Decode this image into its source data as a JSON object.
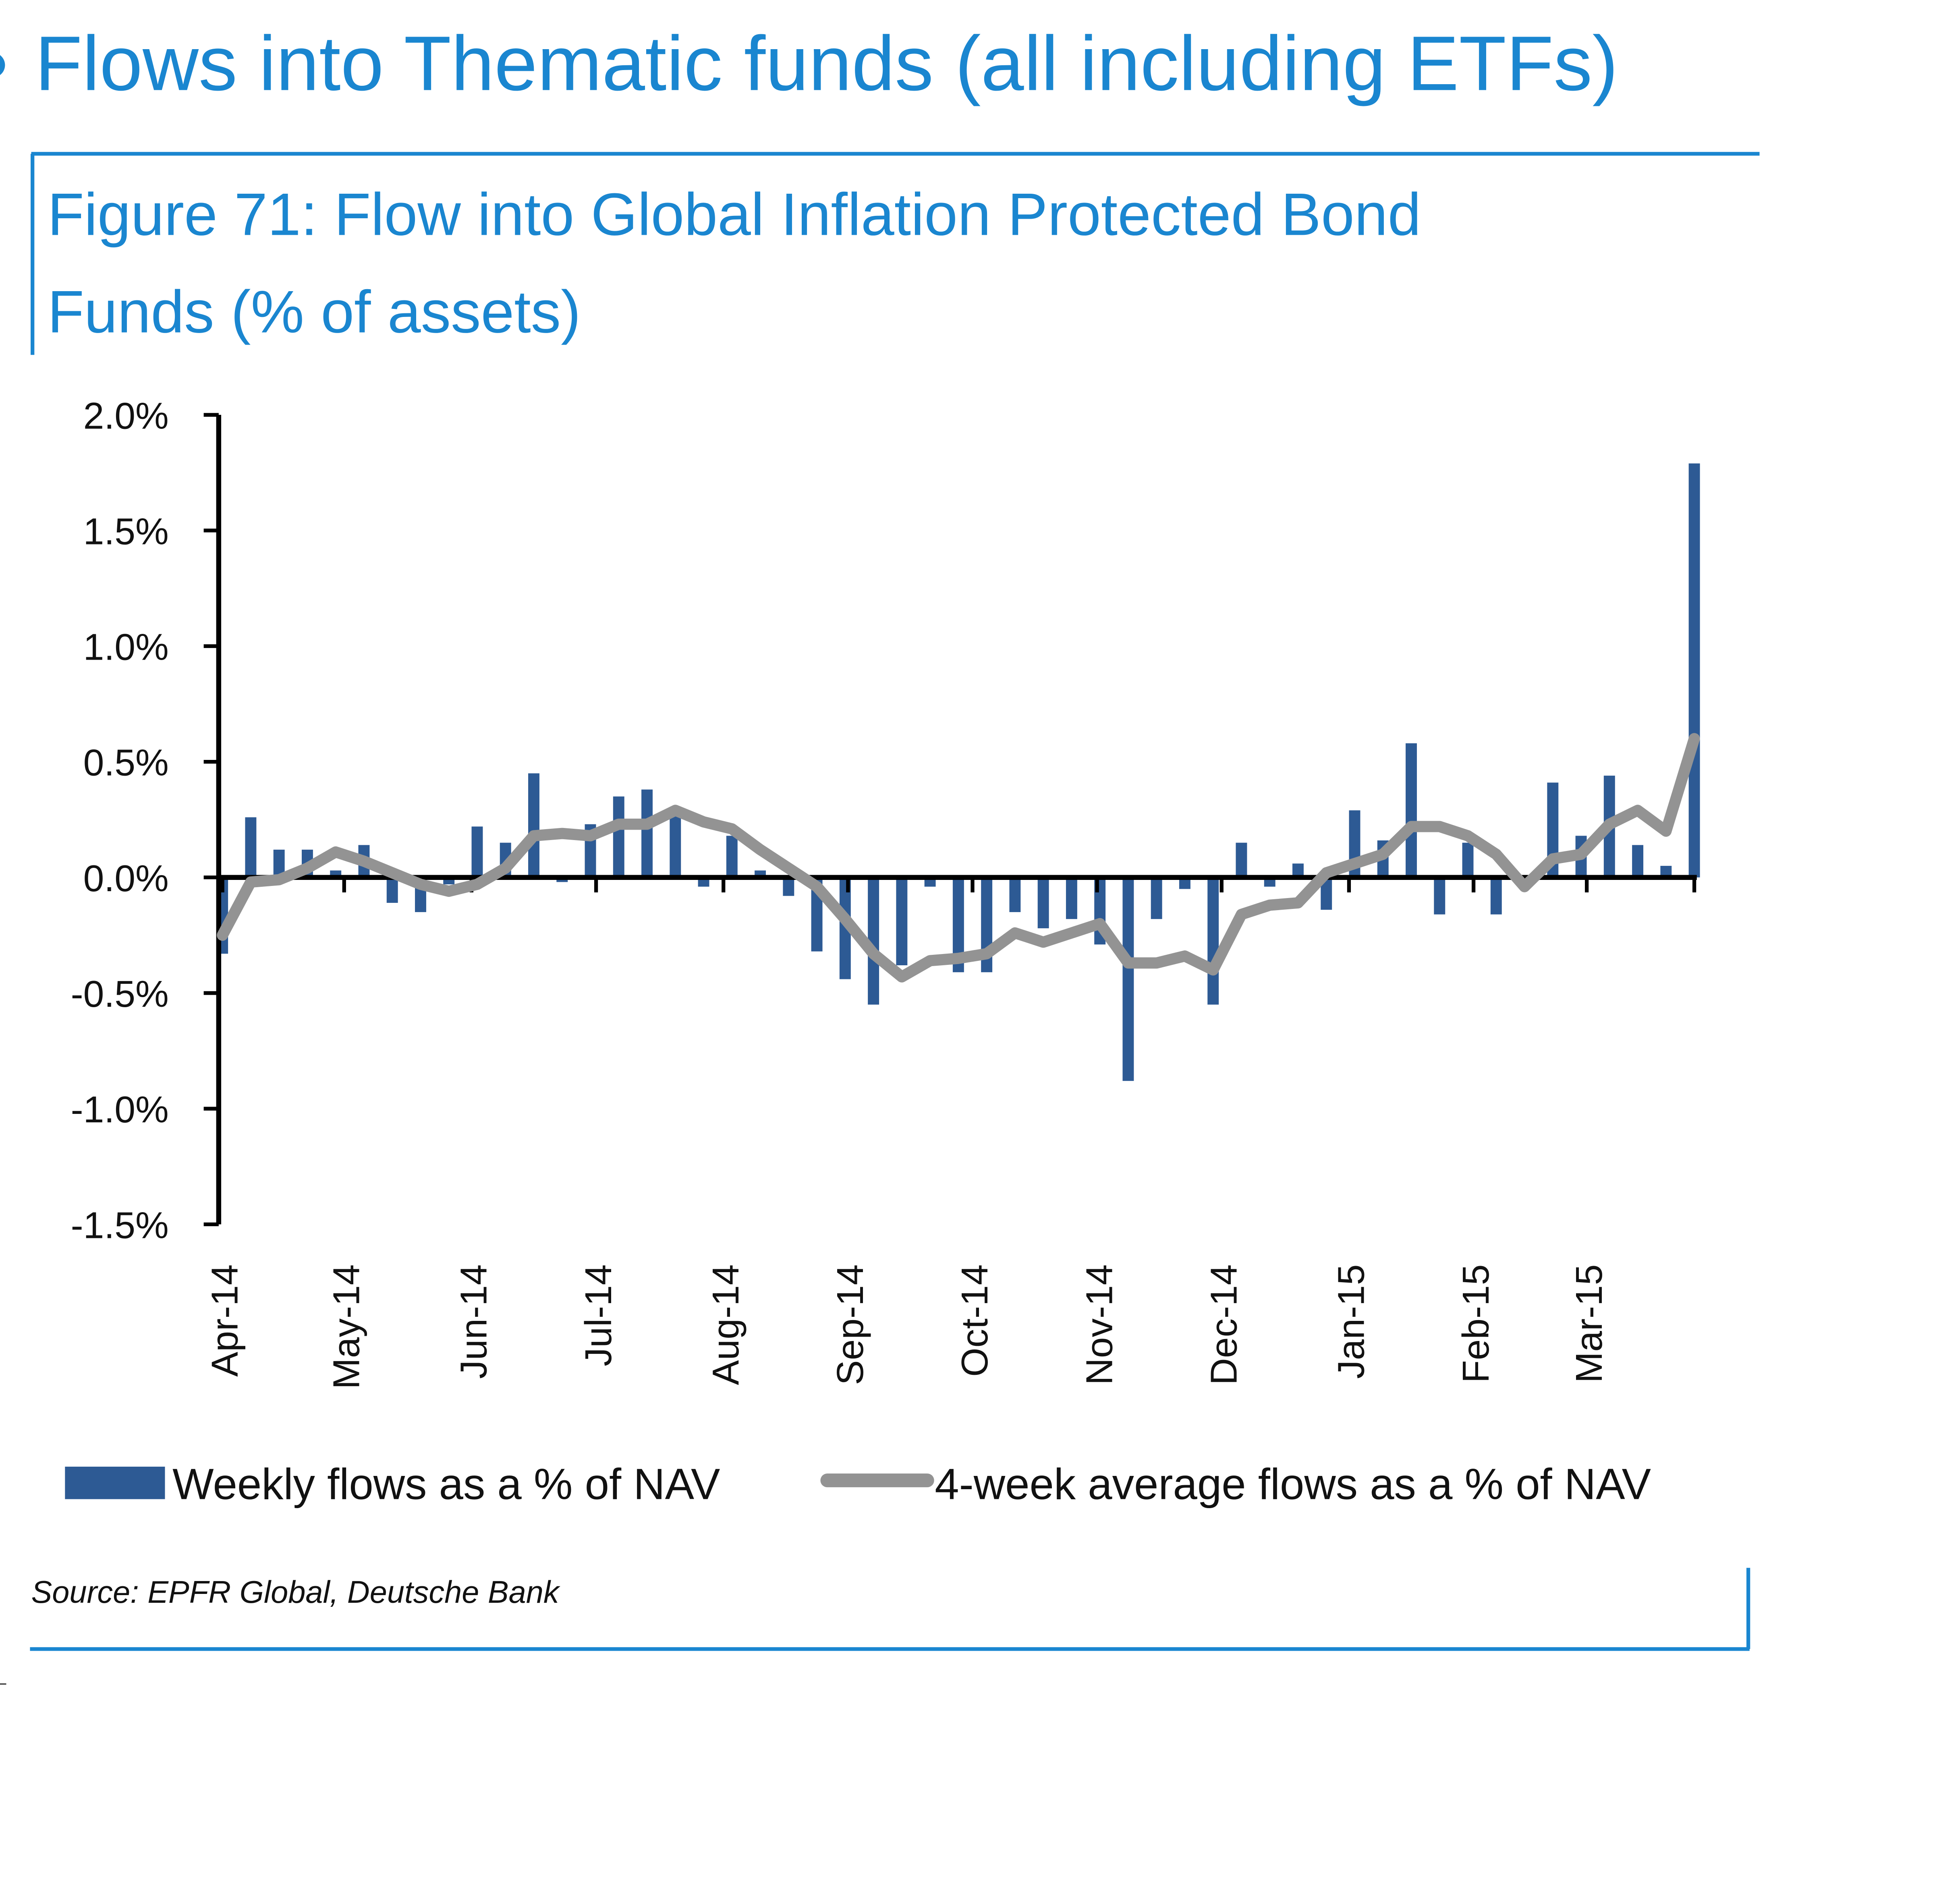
{
  "page_title": "Flows into Thematic funds (all including ETFs)",
  "colors": {
    "accent": "#1a86d0",
    "bars": "#2d5a94",
    "line": "#939393"
  },
  "chart_data": {
    "type": "bar",
    "title_line1": "Figure 71: Flow into Global Inflation Protected Bond",
    "title_line2": "Funds (% of assets)",
    "xlabel": "",
    "ylabel": "",
    "ylim": [
      -1.5,
      2.0
    ],
    "y_ticks": [
      2.0,
      1.5,
      1.0,
      0.5,
      0.0,
      -0.5,
      -1.0,
      -1.5
    ],
    "y_tick_labels": [
      "2.0%",
      "1.5%",
      "1.0%",
      "0.5%",
      "0.0%",
      "-0.5%",
      "-1.0%",
      "-1.5%"
    ],
    "x_tick_labels": [
      "Apr-14",
      "May-14",
      "Jun-14",
      "Jul-14",
      "Aug-14",
      "Sep-14",
      "Oct-14",
      "Nov-14",
      "Dec-14",
      "Jan-15",
      "Feb-15",
      "Mar-15"
    ],
    "x_tick_week_index": [
      0,
      4.3,
      8.8,
      13.2,
      17.7,
      22.1,
      26.5,
      30.9,
      35.3,
      39.8,
      44.2,
      48.2
    ],
    "grid": false,
    "legend_position": "bottom",
    "series": [
      {
        "name": "Weekly flows as a % of NAV",
        "type": "bar",
        "values": [
          -0.33,
          0.26,
          0.12,
          0.12,
          0.03,
          0.14,
          -0.11,
          -0.15,
          -0.03,
          0.22,
          0.15,
          0.45,
          -0.02,
          0.23,
          0.35,
          0.38,
          0.3,
          -0.04,
          0.18,
          0.03,
          -0.08,
          -0.32,
          -0.44,
          -0.55,
          -0.38,
          -0.04,
          -0.41,
          -0.41,
          -0.15,
          -0.22,
          -0.18,
          -0.29,
          -0.88,
          -0.18,
          -0.05,
          -0.55,
          0.15,
          -0.04,
          0.06,
          -0.14,
          0.29,
          0.16,
          0.58,
          -0.16,
          0.15,
          -0.16,
          -0.02,
          0.41,
          0.18,
          0.44,
          0.14,
          0.05,
          1.79
        ]
      },
      {
        "name": "4-week average flows as a % of NAV",
        "type": "line",
        "values": [
          -0.25,
          -0.02,
          -0.01,
          0.04,
          0.11,
          0.07,
          0.02,
          -0.03,
          -0.06,
          -0.03,
          0.04,
          0.18,
          0.19,
          0.18,
          0.23,
          0.23,
          0.29,
          0.24,
          0.21,
          0.12,
          0.04,
          -0.04,
          -0.18,
          -0.33,
          -0.43,
          -0.36,
          -0.35,
          -0.33,
          -0.24,
          -0.28,
          -0.24,
          -0.2,
          -0.37,
          -0.37,
          -0.34,
          -0.4,
          -0.16,
          -0.12,
          -0.11,
          0.02,
          0.06,
          0.1,
          0.22,
          0.22,
          0.18,
          0.1,
          -0.04,
          0.08,
          0.1,
          0.23,
          0.29,
          0.2,
          0.6
        ]
      }
    ]
  },
  "source": "Source: EPFR Global, Deutsche Bank"
}
